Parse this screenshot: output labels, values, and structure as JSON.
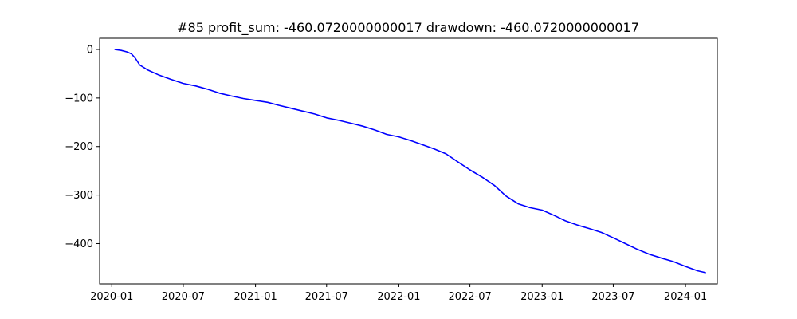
{
  "chart_data": {
    "type": "line",
    "title": "#85   profit_sum: -460.0720000000017 drawdown: -460.0720000000017",
    "xlabel": "",
    "ylabel": "",
    "x_axis": "date",
    "xlim": [
      "2019-12-01",
      "2024-03-22"
    ],
    "ylim": [
      -483,
      23
    ],
    "grid": false,
    "x_ticks": [
      "2020-01",
      "2020-07",
      "2021-01",
      "2021-07",
      "2022-01",
      "2022-07",
      "2023-01",
      "2023-07",
      "2024-01"
    ],
    "y_ticks": [
      0,
      -100,
      -200,
      -300,
      -400
    ],
    "series": [
      {
        "color": "#0000ff",
        "x": [
          "2020-01-08",
          "2020-01-25",
          "2020-02-08",
          "2020-02-20",
          "2020-03-01",
          "2020-03-12",
          "2020-04-01",
          "2020-05-01",
          "2020-06-01",
          "2020-07-01",
          "2020-08-01",
          "2020-09-01",
          "2020-10-01",
          "2020-11-01",
          "2020-12-01",
          "2021-01-01",
          "2021-02-01",
          "2021-03-01",
          "2021-04-01",
          "2021-05-01",
          "2021-06-01",
          "2021-07-01",
          "2021-08-01",
          "2021-09-01",
          "2021-10-01",
          "2021-11-01",
          "2021-12-01",
          "2022-01-01",
          "2022-02-01",
          "2022-03-01",
          "2022-04-01",
          "2022-05-01",
          "2022-06-01",
          "2022-07-01",
          "2022-08-01",
          "2022-09-01",
          "2022-10-01",
          "2022-11-01",
          "2022-12-01",
          "2023-01-01",
          "2023-02-01",
          "2023-03-01",
          "2023-04-01",
          "2023-05-01",
          "2023-06-01",
          "2023-07-01",
          "2023-08-01",
          "2023-09-01",
          "2023-10-01",
          "2023-11-01",
          "2023-12-01",
          "2024-01-01",
          "2024-02-01",
          "2024-02-22"
        ],
        "y": [
          0,
          -2,
          -5,
          -9,
          -18,
          -32,
          -42,
          -53,
          -62,
          -70,
          -75,
          -82,
          -90,
          -96,
          -101,
          -105,
          -109,
          -115,
          -121,
          -127,
          -133,
          -141,
          -146,
          -152,
          -158,
          -166,
          -175,
          -180,
          -188,
          -196,
          -205,
          -215,
          -232,
          -248,
          -263,
          -280,
          -302,
          -318,
          -326,
          -331,
          -342,
          -353,
          -362,
          -369,
          -377,
          -388,
          -400,
          -412,
          -422,
          -430,
          -437,
          -447,
          -456,
          -460
        ]
      }
    ]
  }
}
